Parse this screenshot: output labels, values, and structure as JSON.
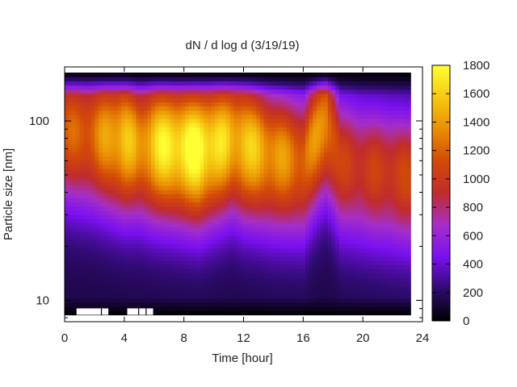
{
  "chart_data": {
    "type": "heatmap",
    "title": "dN / d log d (3/19/19)",
    "xlabel": "Time [hour]",
    "ylabel": "Particle size [nm]",
    "x_range": [
      0,
      24
    ],
    "x_ticks": [
      0,
      4,
      8,
      12,
      16,
      20,
      24
    ],
    "y_scale": "log",
    "y_range_nm": [
      7.6,
      200
    ],
    "y_ticks": [
      10,
      100
    ],
    "data_x_extent_hours": [
      0,
      23.2
    ],
    "data_y_extent_nm": [
      8.3,
      186
    ],
    "colorbar": {
      "range": [
        0,
        1800
      ],
      "ticks": [
        0,
        200,
        400,
        600,
        800,
        1000,
        1200,
        1400,
        1600,
        1800
      ],
      "colormap": [
        "#000000",
        "#2e0b6e",
        "#7a10f0",
        "#a52fc8",
        "#c02c2c",
        "#d24a08",
        "#ea8e04",
        "#f6c912",
        "#ffff33"
      ]
    },
    "concentration_profile": {
      "description_hours": [
        0,
        2,
        4,
        5,
        6,
        9,
        11.3,
        12,
        14,
        16,
        17.5,
        18.5,
        20,
        23
      ],
      "peak_values": [
        1000,
        1100,
        1450,
        1200,
        1500,
        1700,
        1350,
        1450,
        1250,
        1100,
        1250,
        880,
        850,
        900
      ],
      "peak_size_nm": [
        90,
        85,
        80,
        75,
        75,
        70,
        80,
        75,
        65,
        60,
        100,
        60,
        55,
        50
      ]
    },
    "missing_data_hours": [
      0.8,
      1.2,
      1.6,
      2.0,
      2.5,
      4.2,
      4.5,
      5.0,
      5.5
    ]
  }
}
